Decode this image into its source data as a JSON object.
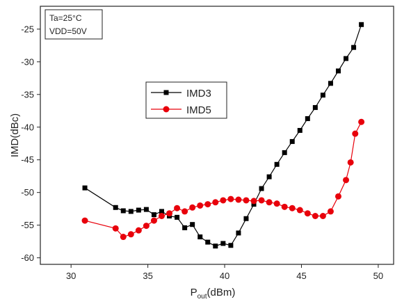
{
  "chart_data": {
    "type": "line",
    "title": "",
    "xlabel_main": "P",
    "xlabel_sub": "out",
    "xlabel_unit": "(dBm)",
    "ylabel": "IMD(dBc)",
    "xlim": [
      28,
      51
    ],
    "ylim": [
      -61,
      -21.5
    ],
    "xticks": [
      30,
      35,
      40,
      45,
      50
    ],
    "yticks": [
      -25,
      -30,
      -35,
      -40,
      -45,
      -50,
      -55,
      -60
    ],
    "grid": false,
    "legend_position": "center-left",
    "annotation_lines": [
      "Ta=25°C",
      "VDD=50V"
    ],
    "series": [
      {
        "name": "IMD3",
        "color": "#000000",
        "marker": "square",
        "x": [
          30.9,
          32.9,
          33.4,
          33.9,
          34.4,
          34.9,
          35.4,
          35.9,
          36.4,
          36.9,
          37.4,
          37.9,
          38.4,
          38.9,
          39.4,
          39.9,
          40.4,
          40.9,
          41.4,
          41.9,
          42.4,
          42.9,
          43.4,
          43.9,
          44.4,
          44.9,
          45.4,
          45.9,
          46.4,
          46.9,
          47.4,
          47.9,
          48.4,
          48.9
        ],
        "y": [
          -49.3,
          -52.3,
          -52.8,
          -52.9,
          -52.7,
          -52.6,
          -53.4,
          -52.9,
          -53.6,
          -53.8,
          -55.4,
          -54.9,
          -56.8,
          -57.6,
          -58.2,
          -57.8,
          -58.1,
          -56.2,
          -54.0,
          -51.8,
          -49.4,
          -47.6,
          -45.7,
          -43.9,
          -42.2,
          -40.5,
          -38.7,
          -37.0,
          -35.1,
          -33.3,
          -31.4,
          -29.5,
          -27.8,
          -24.3
        ]
      },
      {
        "name": "IMD5",
        "color": "#e8000b",
        "marker": "circle",
        "x": [
          30.9,
          32.9,
          33.4,
          33.9,
          34.4,
          34.9,
          35.4,
          35.9,
          36.4,
          36.9,
          37.4,
          37.9,
          38.4,
          38.9,
          39.4,
          39.9,
          40.4,
          40.9,
          41.4,
          41.9,
          42.4,
          42.9,
          43.4,
          43.9,
          44.4,
          44.9,
          45.4,
          45.9,
          46.4,
          46.9,
          47.4,
          47.9,
          48.2,
          48.5,
          48.9
        ],
        "y": [
          -54.3,
          -55.5,
          -56.8,
          -56.4,
          -55.8,
          -55.1,
          -54.3,
          -53.6,
          -53.2,
          -52.4,
          -52.9,
          -52.3,
          -52.0,
          -51.8,
          -51.5,
          -51.2,
          -51.0,
          -51.1,
          -51.2,
          -51.3,
          -51.2,
          -51.5,
          -51.7,
          -52.2,
          -52.4,
          -52.7,
          -53.2,
          -53.6,
          -53.6,
          -52.9,
          -50.6,
          -48.1,
          -45.4,
          -41.0,
          -39.2
        ]
      }
    ]
  }
}
